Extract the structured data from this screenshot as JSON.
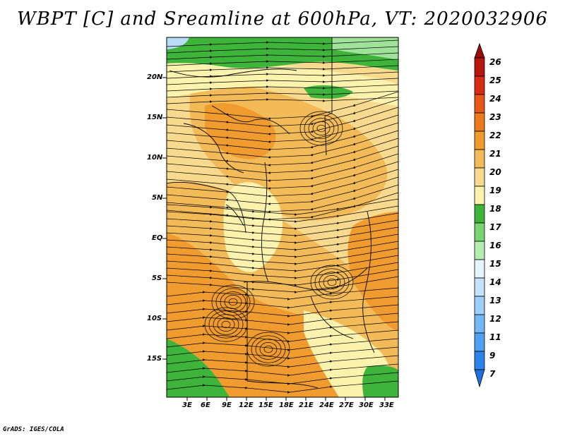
{
  "title": "WBPT [C] and Sreamline at 600hPa, VT: 2020032906",
  "footer": "GrADS: IGES/COLA",
  "map": {
    "lat_labels": [
      "20N",
      "15N",
      "10N",
      "5N",
      "EQ",
      "5S",
      "10S",
      "15S"
    ],
    "lon_labels": [
      "3E",
      "6E",
      "9E",
      "12E",
      "15E",
      "18E",
      "21E",
      "24E",
      "27E",
      "30E",
      "33E"
    ]
  },
  "colorbar": {
    "labels": [
      "7",
      "9",
      "11",
      "12",
      "13",
      "14",
      "15",
      "16",
      "17",
      "18",
      "19",
      "20",
      "21",
      "22",
      "23",
      "24",
      "25",
      "26"
    ],
    "colors": [
      "#1e6fe0",
      "#2b84ea",
      "#4da0f2",
      "#73b8f6",
      "#9ccff9",
      "#c3e3fb",
      "#e6f5fb",
      "#b5ecb0",
      "#76d56e",
      "#3fb43a",
      "#fbf2ae",
      "#f8da8e",
      "#f3bb58",
      "#ef9b2d",
      "#ec7a1b",
      "#e85618",
      "#d82a14",
      "#b7150f",
      "#9a0c0a"
    ]
  },
  "colors": {
    "green": "#3fb43a",
    "light_green": "#9fe39a",
    "pale_yellow": "#fbf2ae",
    "light_orange": "#f8da8e",
    "orange": "#f3bb58",
    "dark_orange": "#ef9b2d",
    "water_blue": "#b9ddf7"
  }
}
